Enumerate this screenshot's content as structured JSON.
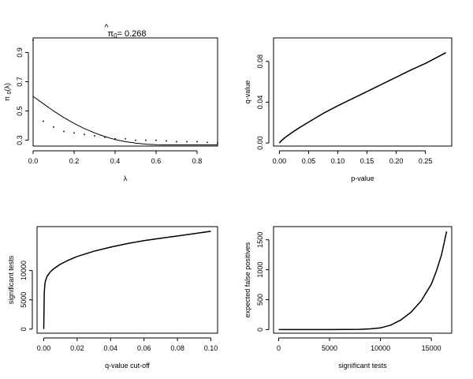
{
  "chart_data": [
    {
      "type": "scatter",
      "title": "π̂₀ = 0.268",
      "title_parts": {
        "symbol": "π",
        "hat": "^",
        "subscript": "0",
        "value": "= 0.268"
      },
      "xlabel": "λ",
      "ylabel": "π₀(λ)",
      "ylabel_parts": {
        "symbol": "π",
        "subscript": "0",
        "arg": "(λ)"
      },
      "xlim": [
        0,
        0.9
      ],
      "ylim": [
        0.26,
        1.0
      ],
      "xticks": [
        0,
        0.2,
        0.4,
        0.6,
        0.8
      ],
      "xtick_labels": [
        "0.0",
        "0.2",
        "0.4",
        "0.6",
        "0.8"
      ],
      "yticks": [
        0.3,
        0.5,
        0.7,
        0.9
      ],
      "ytick_labels": [
        "0.3",
        "0.5",
        "0.7",
        "0.9"
      ],
      "grid": false,
      "series": [
        {
          "kind": "points",
          "x": [
            0,
            0.05,
            0.1,
            0.15,
            0.2,
            0.25,
            0.3,
            0.35,
            0.4,
            0.45,
            0.5,
            0.55,
            0.6,
            0.65,
            0.7,
            0.75,
            0.8,
            0.85,
            0.9
          ],
          "values": [
            0.985,
            0.43,
            0.39,
            0.36,
            0.35,
            0.34,
            0.33,
            0.32,
            0.31,
            0.31,
            0.3,
            0.3,
            0.3,
            0.295,
            0.29,
            0.29,
            0.29,
            0.285,
            0.28
          ]
        },
        {
          "kind": "line",
          "x": [
            0,
            0.05,
            0.1,
            0.15,
            0.2,
            0.25,
            0.3,
            0.35,
            0.4,
            0.45,
            0.5,
            0.55,
            0.6,
            0.65,
            0.7,
            0.75,
            0.8,
            0.85,
            0.9
          ],
          "values": [
            0.6,
            0.55,
            0.5,
            0.455,
            0.415,
            0.38,
            0.35,
            0.325,
            0.305,
            0.29,
            0.28,
            0.273,
            0.269,
            0.268,
            0.268,
            0.268,
            0.268,
            0.268,
            0.268
          ]
        }
      ]
    },
    {
      "type": "line",
      "title": "",
      "xlabel": "p-value",
      "ylabel": "q-value",
      "xlim": [
        -0.01,
        0.295
      ],
      "ylim": [
        -0.003,
        0.103
      ],
      "xticks": [
        0,
        0.05,
        0.1,
        0.15,
        0.2,
        0.25
      ],
      "xtick_labels": [
        "0.00",
        "0.05",
        "0.10",
        "0.15",
        "0.20",
        "0.25"
      ],
      "yticks": [
        0,
        0.04,
        0.08
      ],
      "ytick_labels": [
        "0.00",
        "0.04",
        "0.08"
      ],
      "grid": false,
      "series": [
        {
          "kind": "line",
          "x": [
            0,
            0.002,
            0.005,
            0.01,
            0.02,
            0.03,
            0.05,
            0.075,
            0.1,
            0.125,
            0.15,
            0.175,
            0.2,
            0.225,
            0.25,
            0.285
          ],
          "values": [
            0,
            0.0015,
            0.003,
            0.0055,
            0.0095,
            0.0135,
            0.0205,
            0.029,
            0.0365,
            0.0435,
            0.0505,
            0.0575,
            0.0645,
            0.0715,
            0.078,
            0.0885
          ]
        }
      ]
    },
    {
      "type": "line",
      "title": "",
      "xlabel": "q-value cut-off",
      "ylabel": "significant tests",
      "xlim": [
        -0.004,
        0.104
      ],
      "ylim": [
        -700,
        17500
      ],
      "xticks": [
        0,
        0.02,
        0.04,
        0.06,
        0.08,
        0.1
      ],
      "xtick_labels": [
        "0.00",
        "0.02",
        "0.04",
        "0.06",
        "0.08",
        "0.10"
      ],
      "yticks": [
        0,
        5000,
        10000
      ],
      "ytick_labels": [
        "0",
        "5000",
        "10000"
      ],
      "grid": false,
      "series": [
        {
          "kind": "line",
          "x": [
            0,
            0.0003,
            0.0006,
            0.001,
            0.002,
            0.004,
            0.006,
            0.01,
            0.015,
            0.02,
            0.03,
            0.04,
            0.05,
            0.06,
            0.07,
            0.08,
            0.09,
            0.1
          ],
          "values": [
            0,
            6000,
            7500,
            8200,
            9000,
            9800,
            10300,
            11100,
            11800,
            12400,
            13300,
            14000,
            14600,
            15100,
            15500,
            15900,
            16300,
            16700
          ]
        }
      ]
    },
    {
      "type": "line",
      "title": "",
      "xlabel": "significant tests",
      "ylabel": "expected false positives",
      "xlim": [
        -500,
        17000
      ],
      "ylim": [
        -60,
        1720
      ],
      "xticks": [
        0,
        5000,
        10000,
        15000
      ],
      "xtick_labels": [
        "0",
        "5000",
        "10000",
        "15000"
      ],
      "yticks": [
        0,
        500,
        1000,
        1500
      ],
      "ytick_labels": [
        "0",
        "500",
        "1000",
        "1500"
      ],
      "grid": false,
      "series": [
        {
          "kind": "line",
          "x": [
            0,
            2000,
            5000,
            8000,
            9000,
            10000,
            11000,
            12000,
            13000,
            14000,
            15000,
            15500,
            16000,
            16500
          ],
          "values": [
            0,
            0,
            1,
            5,
            12,
            28,
            75,
            160,
            290,
            480,
            760,
            980,
            1250,
            1640
          ]
        }
      ]
    }
  ]
}
